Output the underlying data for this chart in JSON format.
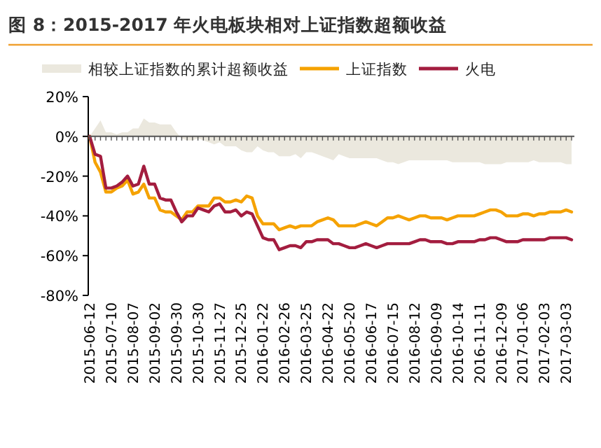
{
  "chart_data": {
    "type": "line",
    "title": "图 8：2015-2017 年火电板块相对上证指数超额收益",
    "categories": [
      "2015-06-12",
      null,
      null,
      null,
      "2015-07-10",
      null,
      null,
      null,
      "2015-08-07",
      null,
      null,
      null,
      "2015-09-02",
      null,
      null,
      null,
      "2015-09-30",
      null,
      null,
      null,
      "2015-10-30",
      null,
      null,
      null,
      "2015-11-27",
      null,
      null,
      null,
      "2015-12-25",
      null,
      null,
      null,
      "2016-01-22",
      null,
      null,
      null,
      "2016-02-26",
      null,
      null,
      null,
      "2016-03-25",
      null,
      null,
      null,
      "2016-04-22",
      null,
      null,
      null,
      "2016-05-20",
      null,
      null,
      null,
      "2016-06-17",
      null,
      null,
      null,
      "2016-07-15",
      null,
      null,
      null,
      "2016-08-12",
      null,
      null,
      null,
      "2016-09-09",
      null,
      null,
      null,
      "2016-10-14",
      null,
      null,
      null,
      "2016-11-11",
      null,
      null,
      null,
      "2016-12-09",
      null,
      null,
      null,
      "2017-01-06",
      null,
      null,
      null,
      "2017-02-03",
      null,
      null,
      null,
      "2017-03-03",
      null
    ],
    "series": [
      {
        "name": "相较上证指数的累计超额收益",
        "type": "area",
        "color": "#ebe8de",
        "values": [
          0,
          4,
          8,
          2,
          2,
          1,
          2,
          2,
          4,
          4,
          9,
          7,
          7,
          6,
          6,
          6,
          2,
          -1,
          -2,
          -2,
          -1,
          -2,
          -3,
          -4,
          -3,
          -5,
          -5,
          -5,
          -7,
          -8,
          -8,
          -5,
          -7,
          -8,
          -8,
          -10,
          -10,
          -10,
          -9,
          -11,
          -8,
          -8,
          -9,
          -10,
          -11,
          -12,
          -9,
          -10,
          -11,
          -11,
          -11,
          -11,
          -11,
          -11,
          -12,
          -13,
          -13,
          -14,
          -13,
          -12,
          -12,
          -12,
          -12,
          -12,
          -12,
          -12,
          -12,
          -13,
          -13,
          -13,
          -13,
          -13,
          -13,
          -14,
          -14,
          -14,
          -14,
          -13,
          -13,
          -13,
          -13,
          -13,
          -12,
          -13,
          -13,
          -13,
          -13,
          -13,
          -14,
          -14
        ]
      },
      {
        "name": "上证指数",
        "type": "line",
        "color": "#f5a200",
        "values": [
          0,
          -13,
          -18,
          -28,
          -28,
          -26,
          -25,
          -22,
          -29,
          -28,
          -24,
          -31,
          -31,
          -37,
          -38,
          -38,
          -40,
          -42,
          -38,
          -38,
          -35,
          -35,
          -35,
          -31,
          -31,
          -33,
          -33,
          -32,
          -33,
          -30,
          -31,
          -40,
          -44,
          -44,
          -44,
          -47,
          -46,
          -45,
          -46,
          -45,
          -45,
          -45,
          -43,
          -42,
          -41,
          -42,
          -45,
          -45,
          -45,
          -45,
          -44,
          -43,
          -44,
          -45,
          -43,
          -41,
          -41,
          -40,
          -41,
          -42,
          -41,
          -40,
          -40,
          -41,
          -41,
          -41,
          -42,
          -41,
          -40,
          -40,
          -40,
          -40,
          -39,
          -38,
          -37,
          -37,
          -38,
          -40,
          -40,
          -40,
          -39,
          -39,
          -40,
          -39,
          -39,
          -38,
          -38,
          -38,
          -37,
          -38
        ]
      },
      {
        "name": "火电",
        "type": "line",
        "color": "#a31d3f",
        "values": [
          0,
          -9,
          -10,
          -26,
          -26,
          -25,
          -23,
          -20,
          -25,
          -24,
          -15,
          -24,
          -24,
          -31,
          -32,
          -32,
          -38,
          -43,
          -40,
          -40,
          -36,
          -37,
          -38,
          -35,
          -34,
          -38,
          -38,
          -37,
          -40,
          -38,
          -39,
          -45,
          -51,
          -52,
          -52,
          -57,
          -56,
          -55,
          -55,
          -56,
          -53,
          -53,
          -52,
          -52,
          -52,
          -54,
          -54,
          -55,
          -56,
          -56,
          -55,
          -54,
          -55,
          -56,
          -55,
          -54,
          -54,
          -54,
          -54,
          -54,
          -53,
          -52,
          -52,
          -53,
          -53,
          -53,
          -54,
          -54,
          -53,
          -53,
          -53,
          -53,
          -52,
          -52,
          -51,
          -51,
          -52,
          -53,
          -53,
          -53,
          -52,
          -52,
          -52,
          -52,
          -52,
          -51,
          -51,
          -51,
          -51,
          -52
        ]
      }
    ],
    "ylim": [
      -80,
      20
    ],
    "yticks": [
      {
        "value": 20,
        "label": "20%"
      },
      {
        "value": 0,
        "label": "0%"
      },
      {
        "value": -20,
        "label": "-20%"
      },
      {
        "value": -40,
        "label": "-40%"
      },
      {
        "value": -60,
        "label": "-60%"
      },
      {
        "value": -80,
        "label": "-80%"
      }
    ],
    "legend": "top"
  }
}
